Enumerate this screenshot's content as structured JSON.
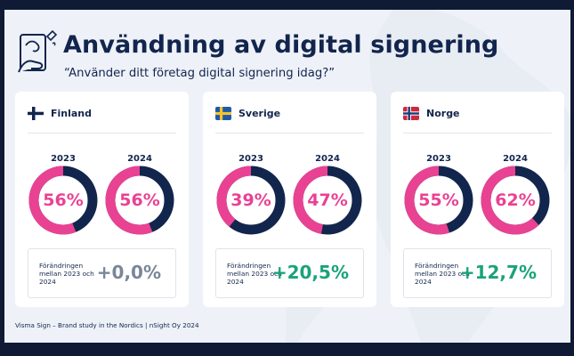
{
  "header": {
    "title": "Användning av digital signering",
    "subtitle": "“Använder ditt företag digital signering idag?”",
    "icon": "hand-signing-icon"
  },
  "chart_data": {
    "type": "donut",
    "title": "Användning av digital signering",
    "subtitle": "“Använder ditt företag digital signering idag?”",
    "categories": [
      "2023",
      "2024"
    ],
    "series": [
      {
        "name": "Finland",
        "values": [
          56,
          56
        ],
        "labels": [
          "56%",
          "56%"
        ],
        "change": "+0,0%",
        "change_color": "#7a8797",
        "flag": "finland-flag-icon"
      },
      {
        "name": "Sverige",
        "values": [
          39,
          47
        ],
        "labels": [
          "39%",
          "47%"
        ],
        "change": "+20,5%",
        "change_color": "#1aa37a",
        "flag": "sweden-flag-icon"
      },
      {
        "name": "Norge",
        "values": [
          55,
          62
        ],
        "labels": [
          "55%",
          "62%"
        ],
        "change": "+12,7%",
        "change_color": "#1aa37a",
        "flag": "norway-flag-icon"
      }
    ],
    "change_label": "Förändringen mellan 2023 och 2024",
    "colors": {
      "filled": "#e94293",
      "remaining": "#12254d"
    }
  },
  "footer": "Visma Sign – Brand study in the Nordics | nSight Oy 2024"
}
